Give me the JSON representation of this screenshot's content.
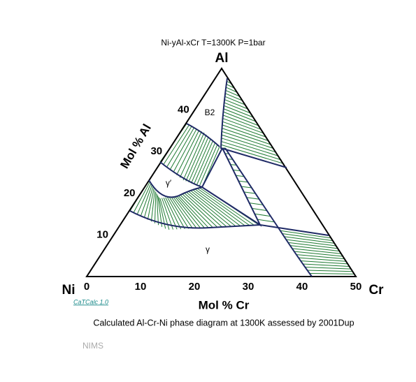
{
  "title": "Ni-yAl-xCr     T=1300K  P=1bar",
  "vertices": {
    "top": "Al",
    "left": "Ni",
    "right": "Cr"
  },
  "axes": {
    "left_label": "Mol % Al",
    "left_ticks": [
      "10",
      "20",
      "30",
      "40"
    ],
    "bottom_label": "Mol % Cr",
    "bottom_ticks": [
      "0",
      "10",
      "20",
      "30",
      "40",
      "50"
    ]
  },
  "regions": [
    "B2",
    "γ′",
    "γ"
  ],
  "software": "CaTCalc 1.0",
  "caption": "Calculated Al-Cr-Ni phase diagram at 1300K assessed by 2001Dup",
  "source": "NIMS"
}
